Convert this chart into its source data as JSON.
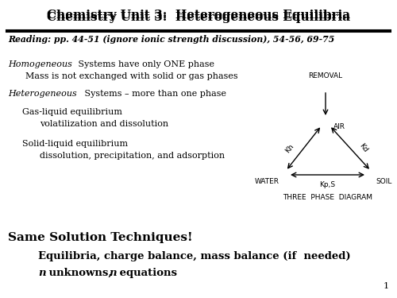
{
  "title": "Chemistry Unit 3:  Heterogeneous Equilibria",
  "reading": "Reading: pp. 44-51 (ignore ionic strength discussion), 54-56, 69-75",
  "line1_italic": "Homogeneous",
  "line1_rest": " Systems have only ONE phase",
  "line2": "Mass is not exchanged with solid or gas phases",
  "line3_italic": "Heterogeneous",
  "line3_rest": " Systems – more than one phase",
  "line4": "Gas-liquid equilibrium",
  "line5": "volatilization and dissolution",
  "line6": "Solid-liquid equilibrium",
  "line7": "dissolution, precipitation, and adsorption",
  "bottom1": "Same Solution Techniques!",
  "bottom2": "Equilibria, charge balance, mass balance (if  needed)",
  "bottom3_n1": "n",
  "bottom3_mid": " unknowns, ",
  "bottom3_n2": "n",
  "bottom3_end": " equations",
  "page_num": "1",
  "diag": {
    "removal": "REMOVAL",
    "air": "AIR",
    "water": "WATER",
    "soil": "SOIL",
    "kh": "Kh",
    "kd": "Kd",
    "kps": "Kp,S",
    "three_phase": "THREE  PHASE  DIAGRAM"
  },
  "bg_color": "#ffffff",
  "text_color": "#000000"
}
